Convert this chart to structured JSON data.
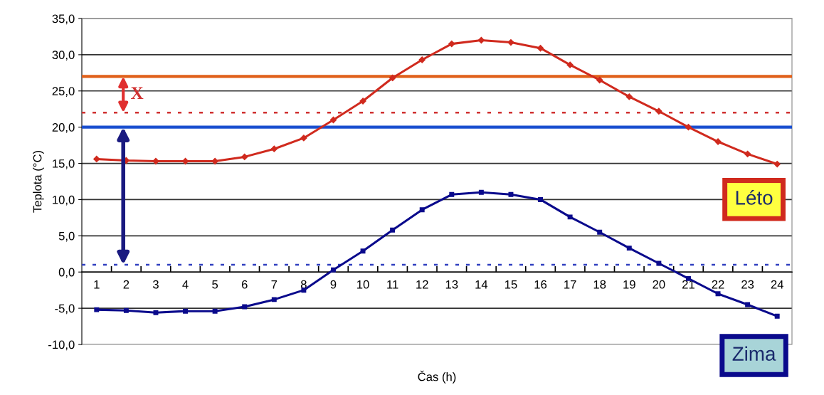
{
  "chart_data": {
    "type": "line",
    "xlabel": "Čas (h)",
    "ylabel": "Teplota (°C)",
    "categories": [
      "1",
      "2",
      "3",
      "4",
      "5",
      "6",
      "7",
      "8",
      "9",
      "10",
      "11",
      "12",
      "13",
      "14",
      "15",
      "16",
      "17",
      "18",
      "19",
      "20",
      "21",
      "22",
      "23",
      "24"
    ],
    "series": [
      {
        "name": "Léto",
        "color": "#d02a1e",
        "marker": "diamond",
        "values": [
          15.6,
          15.4,
          15.3,
          15.3,
          15.3,
          15.9,
          17.0,
          18.5,
          21.0,
          23.6,
          26.8,
          29.3,
          31.5,
          32.0,
          31.7,
          30.9,
          28.6,
          26.5,
          24.2,
          22.2,
          20.0,
          18.0,
          16.3,
          14.9
        ]
      },
      {
        "name": "Zima",
        "color": "#0a0a8c",
        "marker": "square",
        "values": [
          -5.2,
          -5.3,
          -5.6,
          -5.4,
          -5.4,
          -4.8,
          -3.8,
          -2.5,
          0.3,
          2.9,
          5.8,
          8.6,
          10.7,
          11.0,
          10.7,
          10.0,
          7.6,
          5.5,
          3.3,
          1.2,
          -0.9,
          -3.0,
          -4.5,
          -6.1
        ]
      }
    ],
    "ylim": [
      -10,
      35
    ],
    "yticks": [
      {
        "value": -10,
        "label": "-10,0"
      },
      {
        "value": -5,
        "label": "-5,0"
      },
      {
        "value": 0,
        "label": "0,0"
      },
      {
        "value": 5,
        "label": "5,0"
      },
      {
        "value": 10,
        "label": "10,0"
      },
      {
        "value": 15,
        "label": "15,0"
      },
      {
        "value": 20,
        "label": "20,0"
      },
      {
        "value": 25,
        "label": "25,0"
      },
      {
        "value": 30,
        "label": "30,0"
      },
      {
        "value": 35,
        "label": "35,0"
      }
    ],
    "grid": "y",
    "legend": false,
    "ref_lines": [
      {
        "axis": "y",
        "value": 27,
        "color": "#e0601a",
        "line_style": "solid"
      },
      {
        "axis": "y",
        "value": 22,
        "color": "#d03030",
        "line_style": "dotted"
      },
      {
        "axis": "y",
        "value": 20,
        "color": "#1a4fd0",
        "line_style": "solid"
      },
      {
        "axis": "y",
        "value": 1,
        "color": "#3040c0",
        "line_style": "dotted"
      }
    ],
    "annotations": [
      "X"
    ]
  }
}
